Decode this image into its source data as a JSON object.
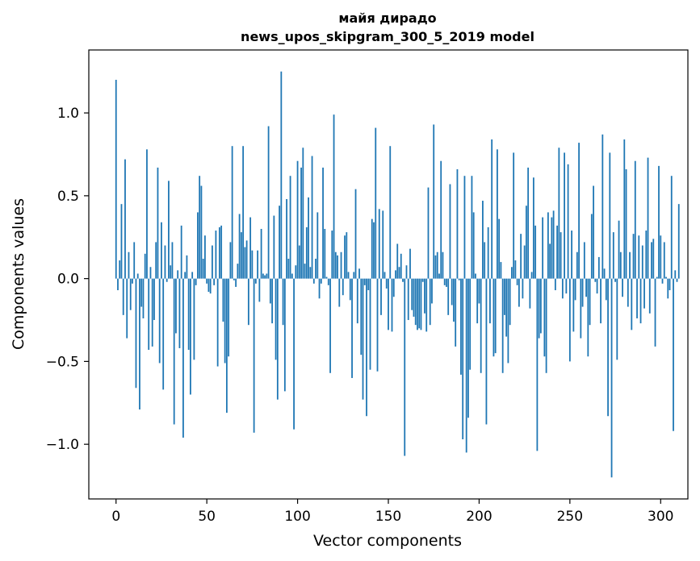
{
  "chart_data": {
    "type": "bar",
    "title": "майя дирадо",
    "subtitle": "news_upos_skipgram_300_5_2019 model",
    "xlabel": "Vector components",
    "ylabel": "Components values",
    "xlim": [
      -15,
      315
    ],
    "ylim": [
      -1.33,
      1.38
    ],
    "x_ticks": [
      0,
      50,
      100,
      150,
      200,
      250,
      300
    ],
    "x_tick_labels": [
      "0",
      "50",
      "100",
      "150",
      "200",
      "250",
      "300"
    ],
    "y_ticks": [
      -1.0,
      -0.5,
      0.0,
      0.5,
      1.0
    ],
    "y_tick_labels": [
      "−1.0",
      "−0.5",
      "0.0",
      "0.5",
      "1.0"
    ],
    "grid": false,
    "bar_color": "#1f77b4",
    "values": [
      1.2,
      -0.07,
      0.11,
      0.45,
      -0.22,
      0.72,
      -0.36,
      0.16,
      -0.19,
      -0.03,
      0.22,
      -0.66,
      0.03,
      -0.79,
      -0.17,
      -0.24,
      0.15,
      0.78,
      -0.43,
      0.07,
      -0.41,
      -0.25,
      0.22,
      0.67,
      -0.51,
      0.34,
      -0.67,
      0.2,
      -0.02,
      0.59,
      0.08,
      0.22,
      -0.88,
      -0.33,
      0.05,
      -0.42,
      0.32,
      -0.96,
      0.04,
      0.14,
      -0.43,
      -0.7,
      0.04,
      -0.49,
      -0.04,
      0.4,
      0.62,
      0.56,
      0.12,
      0.26,
      -0.03,
      -0.08,
      -0.09,
      0.2,
      -0.04,
      0.29,
      -0.53,
      0.31,
      0.32,
      -0.26,
      -0.51,
      -0.81,
      -0.47,
      0.22,
      0.8,
      -0.01,
      -0.05,
      0.09,
      0.39,
      0.28,
      0.8,
      0.19,
      0.23,
      -0.28,
      0.37,
      0.17,
      -0.93,
      -0.03,
      0.17,
      -0.14,
      0.3,
      0.03,
      0.02,
      0.03,
      0.92,
      -0.15,
      -0.27,
      0.38,
      -0.49,
      -0.73,
      0.44,
      1.25,
      -0.28,
      -0.68,
      0.48,
      0.12,
      0.62,
      0.03,
      -0.91,
      0.08,
      0.71,
      0.2,
      0.67,
      0.79,
      0.09,
      0.31,
      0.49,
      0.07,
      0.74,
      -0.03,
      0.12,
      0.4,
      -0.12,
      -0.03,
      0.67,
      0.3,
      0.01,
      -0.04,
      -0.57,
      0.29,
      0.99,
      0.16,
      0.14,
      -0.17,
      0.16,
      -0.1,
      0.26,
      0.28,
      0.04,
      -0.13,
      -0.6,
      0.04,
      0.54,
      -0.27,
      0.06,
      -0.46,
      -0.73,
      -0.04,
      -0.83,
      -0.07,
      -0.55,
      0.36,
      0.34,
      0.91,
      -0.56,
      0.42,
      -0.22,
      0.41,
      0.04,
      -0.06,
      -0.31,
      0.8,
      -0.32,
      -0.11,
      0.05,
      0.21,
      0.07,
      0.15,
      -0.02,
      -1.07,
      0.08,
      -0.25,
      0.18,
      -0.19,
      -0.23,
      -0.28,
      -0.31,
      -0.3,
      -0.31,
      -0.02,
      -0.21,
      -0.32,
      0.55,
      -0.28,
      -0.15,
      0.93,
      0.14,
      0.16,
      0.03,
      0.71,
      0.16,
      -0.04,
      -0.05,
      -0.22,
      0.57,
      -0.16,
      -0.26,
      -0.41,
      0.66,
      -0.01,
      -0.58,
      -0.97,
      0.62,
      -1.05,
      -0.84,
      -0.55,
      0.62,
      0.4,
      0.03,
      -0.27,
      -0.15,
      -0.57,
      0.47,
      0.22,
      -0.88,
      0.31,
      -0.27,
      0.84,
      -0.47,
      -0.45,
      0.78,
      0.36,
      0.1,
      -0.57,
      -0.22,
      -0.35,
      -0.51,
      -0.28,
      0.07,
      0.76,
      0.11,
      -0.04,
      -0.17,
      0.27,
      -0.12,
      0.2,
      0.44,
      0.67,
      -0.18,
      0.04,
      0.61,
      0.32,
      -1.04,
      -0.36,
      -0.33,
      0.37,
      -0.47,
      -0.57,
      0.4,
      0.21,
      0.37,
      0.41,
      -0.07,
      0.32,
      0.79,
      0.28,
      -0.12,
      0.76,
      -0.09,
      0.69,
      -0.5,
      0.29,
      -0.32,
      -0.13,
      0.16,
      0.82,
      -0.36,
      -0.17,
      0.22,
      -0.11,
      -0.47,
      -0.28,
      0.39,
      0.56,
      -0.02,
      -0.09,
      0.13,
      -0.27,
      0.87,
      0.06,
      -0.13,
      -0.83,
      0.76,
      -1.2,
      0.28,
      -0.02,
      -0.49,
      0.35,
      0.16,
      -0.11,
      0.84,
      0.66,
      -0.17,
      0.16,
      -0.31,
      0.27,
      0.71,
      -0.24,
      0.26,
      -0.27,
      0.2,
      -0.18,
      0.29,
      0.73,
      -0.21,
      0.22,
      0.24,
      -0.41,
      0.01,
      0.68,
      0.26,
      -0.03,
      0.22,
      0.01,
      -0.12,
      -0.07,
      0.62,
      -0.92,
      0.05,
      -0.02,
      0.45
    ]
  }
}
